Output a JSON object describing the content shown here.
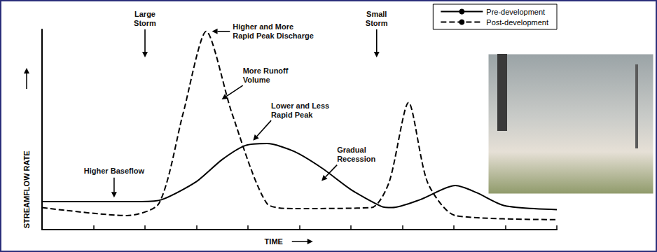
{
  "chart_data": {
    "type": "line",
    "x_label": "TIME",
    "y_label": "STREAMFLOW RATE",
    "xlim": [
      0,
      10
    ],
    "xticks": [
      0,
      1,
      2,
      3,
      4,
      5,
      6,
      7,
      8,
      9,
      10
    ],
    "ylim": [
      0,
      10
    ],
    "tick_labels": false,
    "grid": false,
    "legend": "upper right",
    "series": [
      {
        "name": "Pre-development",
        "color": "#000000",
        "line_style": "solid",
        "marker": "none",
        "x": [
          0,
          1.93,
          2.33,
          3.0,
          3.5,
          3.95,
          4.37,
          4.9,
          5.45,
          6.0,
          6.6,
          6.8,
          7.35,
          8.03,
          8.44,
          8.98,
          10
        ],
        "values": [
          1.4,
          1.4,
          1.5,
          2.4,
          3.5,
          4.2,
          4.3,
          3.9,
          3.05,
          2.0,
          1.15,
          1.1,
          1.5,
          2.2,
          1.85,
          1.2,
          1.0
        ]
      },
      {
        "name": "Post-development",
        "color": "#000000",
        "line_style": "dashed",
        "marker": "none",
        "x": [
          0,
          1.65,
          2.27,
          2.74,
          3.19,
          3.69,
          4.37,
          4.91,
          6.4,
          6.74,
          7.12,
          7.49,
          8.03,
          10
        ],
        "values": [
          1.1,
          0.7,
          1.3,
          5.8,
          9.9,
          5.8,
          1.3,
          1.05,
          1.1,
          2.35,
          6.35,
          2.35,
          0.7,
          0.5
        ]
      }
    ],
    "annotations": [
      {
        "lines": [
          "Large",
          "Storm"
        ],
        "xy": [
          2.0,
          8.6
        ],
        "xytext": [
          2.0,
          10.0
        ]
      },
      {
        "lines": [
          "Higher and More",
          "Rapid Peak Discharge"
        ],
        "xy": [
          3.3,
          9.9
        ],
        "xytext": [
          3.65,
          9.9
        ]
      },
      {
        "lines": [
          "More Runoff",
          "Volume"
        ],
        "xy": [
          3.49,
          6.5
        ],
        "xytext": [
          3.9,
          7.2
        ]
      },
      {
        "lines": [
          "Lower and Less",
          "Rapid Peak"
        ],
        "xy": [
          4.1,
          4.45
        ],
        "xytext": [
          4.45,
          5.45
        ]
      },
      {
        "lines": [
          "Gradual",
          "Recession"
        ],
        "xy": [
          5.43,
          2.43
        ],
        "xytext": [
          5.73,
          3.23
        ]
      },
      {
        "lines": [
          "Higher Baseflow"
        ],
        "xy": [
          1.4,
          1.6
        ],
        "xytext": [
          1.4,
          2.6
        ]
      },
      {
        "lines": [
          "Small",
          "Storm"
        ],
        "xy": [
          6.5,
          8.6
        ],
        "xytext": [
          6.5,
          10.0
        ]
      }
    ]
  }
}
